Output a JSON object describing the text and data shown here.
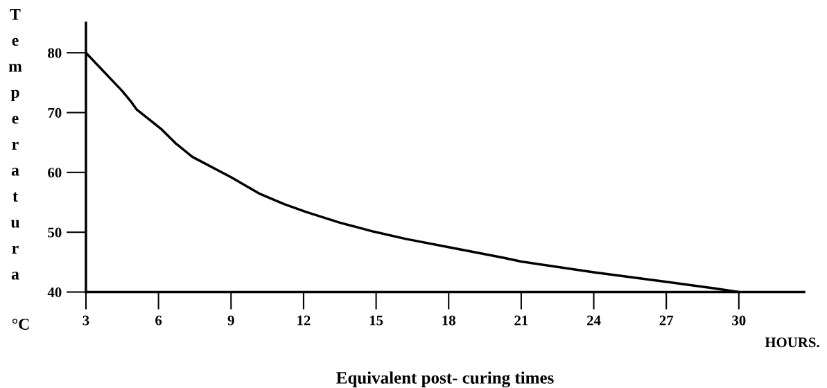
{
  "chart_data": {
    "type": "line",
    "xlabel": "Equivalent post- curing times",
    "ylabel": "Temperatura",
    "annotations": [
      "°C",
      "HOURS."
    ],
    "x": [
      3,
      4.5,
      4.85,
      5.1,
      6.1,
      6.7,
      7.4,
      9,
      10.2,
      11.2,
      12.1,
      13.5,
      14.9,
      16.2,
      18,
      20.3,
      21,
      24,
      27,
      29,
      30
    ],
    "series": [
      {
        "color": "#000000",
        "values": [
          80,
          73.6,
          71.9,
          70.5,
          67.3,
          64.9,
          62.6,
          59.2,
          56.4,
          54.7,
          53.4,
          51.6,
          50.1,
          48.9,
          47.5,
          45.7,
          45.1,
          43.3,
          41.7,
          40.6,
          40
        ]
      }
    ],
    "xlim": [
      3,
      32.7
    ],
    "ylim": [
      40,
      85
    ],
    "xticks": [
      3,
      6,
      9,
      12,
      15,
      18,
      21,
      24,
      27,
      30
    ],
    "yticks": [
      40,
      50,
      60,
      70,
      80
    ],
    "grid": false,
    "legend": false,
    "marker": "none",
    "line_style": "solid"
  }
}
